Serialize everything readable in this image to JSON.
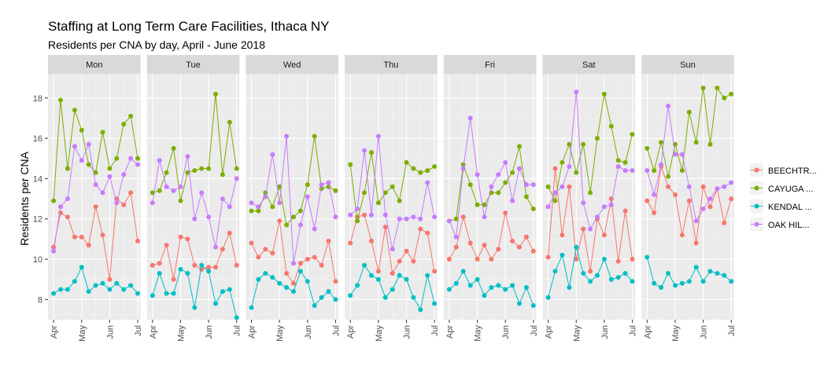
{
  "chart_data": {
    "type": "line",
    "title": "Staffing at Long Term Care Facilities, Ithaca NY",
    "subtitle": "Residents per CNA by day, April - June 2018",
    "ylabel": "Residents per CNA",
    "xlabel": "",
    "ylim": [
      7,
      19.2
    ],
    "xlim": [
      -0.2,
      3.1
    ],
    "y_ticks": [
      8,
      10,
      12,
      14,
      16,
      18
    ],
    "x_ticks": [
      {
        "label": "Apr",
        "v": 0
      },
      {
        "label": "May",
        "v": 1
      },
      {
        "label": "Jun",
        "v": 2
      },
      {
        "label": "Jul",
        "v": 3
      }
    ],
    "grid": true,
    "legend_position": "right",
    "facets": [
      "Mon",
      "Tue",
      "Wed",
      "Thu",
      "Fri",
      "Sat",
      "Sun"
    ],
    "series": [
      {
        "name": "BEECHTR...",
        "color": "#F8766D",
        "values": {
          "Mon": [
            10.6,
            12.3,
            12.1,
            11.1,
            11.1,
            10.7,
            12.6,
            11.2,
            9.0,
            13.0,
            12.7,
            13.3,
            10.9
          ],
          "Tue": [
            9.7,
            9.8,
            10.7,
            9.0,
            11.1,
            11.0,
            9.7,
            9.5,
            9.6,
            9.6,
            10.5,
            11.3,
            9.7
          ],
          "Wed": [
            10.8,
            10.1,
            10.5,
            10.3,
            11.9,
            9.3,
            8.8,
            9.8,
            10.0,
            10.1,
            9.7,
            10.9,
            8.9
          ],
          "Thu": [
            10.8,
            12.1,
            12.2,
            10.9,
            9.4,
            11.6,
            9.3,
            9.9,
            10.4,
            9.9,
            11.5,
            11.3,
            9.4
          ],
          "Fri": [
            10.0,
            10.6,
            12.1,
            10.8,
            10.0,
            10.7,
            10.0,
            10.5,
            12.3,
            10.9,
            10.6,
            11.1,
            10.4
          ],
          "Sat": [
            10.1,
            14.5,
            11.2,
            13.6,
            10.0,
            11.5,
            9.4,
            12.0,
            11.2,
            13.0,
            9.9,
            12.4,
            10.0
          ],
          "Sun": [
            12.9,
            12.3,
            14.6,
            13.6,
            13.2,
            11.2,
            12.9,
            10.8,
            13.6,
            12.6,
            13.5,
            11.8,
            13.0
          ]
        }
      },
      {
        "name": "CAYUGA ...",
        "color": "#7CAE00",
        "values": {
          "Mon": [
            12.9,
            17.9,
            14.5,
            17.4,
            16.4,
            14.7,
            14.3,
            16.3,
            14.5,
            15.0,
            16.7,
            17.1,
            15.0
          ],
          "Tue": [
            13.3,
            13.4,
            14.3,
            15.5,
            12.9,
            14.3,
            14.4,
            14.5,
            14.5,
            18.2,
            14.2,
            16.8,
            14.5
          ],
          "Wed": [
            12.4,
            12.4,
            13.3,
            12.6,
            13.6,
            11.7,
            12.1,
            12.4,
            13.7,
            16.1,
            13.5,
            13.6,
            13.4
          ],
          "Thu": [
            14.7,
            11.9,
            13.3,
            15.3,
            12.8,
            13.3,
            13.6,
            12.9,
            14.8,
            14.5,
            14.3,
            14.4,
            14.6
          ],
          "Fri": [
            11.9,
            12.0,
            14.7,
            13.7,
            12.7,
            12.7,
            13.3,
            13.3,
            13.8,
            14.3,
            15.6,
            13.1,
            12.5
          ],
          "Sat": [
            13.6,
            12.9,
            14.8,
            15.7,
            14.3,
            15.7,
            13.3,
            16.0,
            18.2,
            16.6,
            14.9,
            14.8,
            16.2
          ],
          "Sun": [
            15.5,
            14.4,
            15.8,
            14.1,
            15.7,
            14.4,
            17.3,
            15.8,
            18.5,
            15.7,
            18.5,
            18.0,
            18.2
          ]
        }
      },
      {
        "name": "KENDAL ...",
        "color": "#00BFC4",
        "values": {
          "Mon": [
            8.3,
            8.5,
            8.5,
            8.9,
            9.6,
            8.4,
            8.7,
            8.8,
            8.5,
            8.8,
            8.5,
            8.7,
            8.3
          ],
          "Tue": [
            8.2,
            9.3,
            8.3,
            8.3,
            9.5,
            9.3,
            7.6,
            9.7,
            9.4,
            7.8,
            8.4,
            8.5,
            7.1
          ],
          "Wed": [
            7.6,
            9.0,
            9.3,
            9.1,
            8.8,
            8.6,
            8.4,
            9.4,
            8.9,
            7.7,
            8.1,
            8.4,
            8.0
          ],
          "Thu": [
            8.2,
            8.7,
            9.7,
            9.2,
            9.0,
            8.1,
            8.5,
            9.2,
            9.0,
            8.1,
            7.5,
            9.2,
            7.8
          ],
          "Fri": [
            8.5,
            8.8,
            9.4,
            8.7,
            9.0,
            8.2,
            8.6,
            8.7,
            8.5,
            8.7,
            7.8,
            8.6,
            7.7
          ],
          "Sat": [
            8.1,
            9.4,
            10.2,
            8.6,
            10.6,
            9.3,
            8.9,
            9.2,
            10.0,
            9.0,
            9.1,
            9.3,
            8.9
          ],
          "Sun": [
            10.1,
            8.8,
            8.6,
            9.3,
            8.7,
            8.8,
            8.9,
            9.6,
            8.9,
            9.4,
            9.3,
            9.2,
            8.9
          ]
        }
      },
      {
        "name": "OAK HIL...",
        "color": "#C77CFF",
        "values": {
          "Mon": [
            10.4,
            12.6,
            13.0,
            15.6,
            14.9,
            15.7,
            13.7,
            13.3,
            14.1,
            12.8,
            14.2,
            15.0,
            14.7
          ],
          "Tue": [
            12.8,
            14.9,
            13.6,
            13.4,
            13.6,
            15.1,
            12.0,
            13.3,
            12.1,
            10.6,
            13.0,
            12.6,
            14.0
          ],
          "Wed": [
            12.8,
            12.6,
            13.1,
            15.2,
            12.8,
            16.1,
            9.8,
            11.7,
            13.1,
            11.5,
            13.7,
            13.8,
            12.1
          ],
          "Thu": [
            12.2,
            12.5,
            15.4,
            12.2,
            16.1,
            12.2,
            10.5,
            12.0,
            12.0,
            12.1,
            12.0,
            13.8,
            12.1
          ],
          "Fri": [
            11.9,
            11.1,
            14.5,
            17.0,
            14.2,
            12.1,
            13.6,
            14.2,
            14.8,
            12.9,
            14.5,
            13.7,
            13.7
          ],
          "Sat": [
            12.6,
            13.3,
            13.6,
            14.6,
            18.3,
            12.8,
            11.5,
            12.1,
            12.6,
            12.7,
            14.6,
            14.4,
            14.4
          ],
          "Sun": [
            14.4,
            13.2,
            14.7,
            17.6,
            15.2,
            15.2,
            13.6,
            11.9,
            12.5,
            13.0,
            13.5,
            13.6,
            13.8
          ]
        }
      }
    ]
  }
}
